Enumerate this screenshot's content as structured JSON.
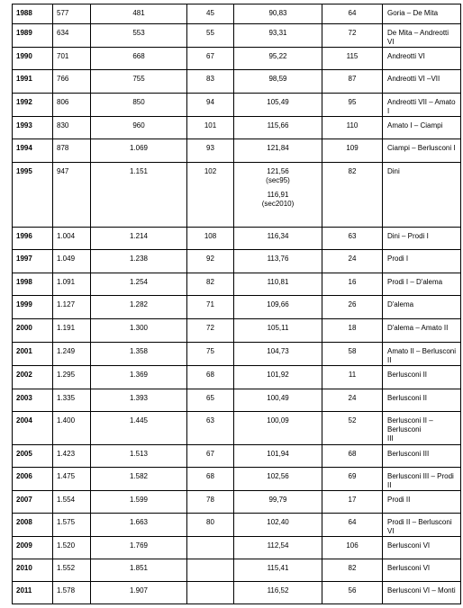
{
  "rows": [
    {
      "year": "1988",
      "a": "577",
      "b": "481",
      "c": "45",
      "d": "90,83",
      "e": "64",
      "gov": "Goria – De Mita"
    },
    {
      "year": "1989",
      "a": "634",
      "b": "553",
      "c": "55",
      "d": "93,31",
      "e": "72",
      "gov": "De Mita – Andreotti VI"
    },
    {
      "year": "1990",
      "a": "701",
      "b": "668",
      "c": "67",
      "d": "95,22",
      "e": "115",
      "gov": "Andreotti VI"
    },
    {
      "year": "1991",
      "a": "766",
      "b": "755",
      "c": "83",
      "d": "98,59",
      "e": "87",
      "gov": "Andreotti VI –VII"
    },
    {
      "year": "1992",
      "a": "806",
      "b": "850",
      "c": "94",
      "d": "105,49",
      "e": "95",
      "gov": "Andreotti VII – Amato I"
    },
    {
      "year": "1993",
      "a": "830",
      "b": "960",
      "c": "101",
      "d": "115,66",
      "e": "110",
      "gov": "Amato I – Ciampi"
    },
    {
      "year": "1994",
      "a": "878",
      "b": "1.069",
      "c": "93",
      "d": "121,84",
      "e": "109",
      "gov": "Ciampi – Berlusconi I"
    },
    {
      "year": "1995",
      "a": "947",
      "b": "1.151",
      "c": "102",
      "d": "121,56",
      "d2": "(sec95)",
      "d3": "116,91",
      "d4": "(sec2010)",
      "e": "82",
      "gov": "Dini"
    },
    {
      "year": "1996",
      "a": "1.004",
      "b": "1.214",
      "c": "108",
      "d": "116,34",
      "e": "63",
      "gov": "Dini – Prodi I"
    },
    {
      "year": "1997",
      "a": "1.049",
      "b": "1.238",
      "c": "92",
      "d": "113,76",
      "e": "24",
      "gov": "Prodi I"
    },
    {
      "year": "1998",
      "a": "1.091",
      "b": "1.254",
      "c": "82",
      "d": "110,81",
      "e": "16",
      "gov": "Prodi I – D'alema"
    },
    {
      "year": "1999",
      "a": "1.127",
      "b": "1.282",
      "c": "71",
      "d": "109,66",
      "e": "26",
      "gov": "D'alema"
    },
    {
      "year": "2000",
      "a": "1.191",
      "b": "1.300",
      "c": "72",
      "d": "105,11",
      "e": "18",
      "gov": "D'alema – Amato II"
    },
    {
      "year": "2001",
      "a": "1.249",
      "b": "1.358",
      "c": "75",
      "d": "104,73",
      "e": "58",
      "gov": "Amato II – Berlusconi II"
    },
    {
      "year": "2002",
      "a": "1.295",
      "b": "1.369",
      "c": "68",
      "d": "101,92",
      "e": "11",
      "gov": "Berlusconi II"
    },
    {
      "year": "2003",
      "a": "1.335",
      "b": "1.393",
      "c": "65",
      "d": "100,49",
      "e": "24",
      "gov": "Berlusconi II"
    },
    {
      "year": "2004",
      "a": "1.400",
      "b": "1.445",
      "c": "63",
      "d": "100,09",
      "e": "52",
      "gov": "Berlusconi  II  –  Berlusconi",
      "gov2": "III"
    },
    {
      "year": "2005",
      "a": "1.423",
      "b": "1.513",
      "c": "67",
      "d": "101,94",
      "e": "68",
      "gov": "Berlusconi III"
    },
    {
      "year": "2006",
      "a": "1.475",
      "b": "1.582",
      "c": "68",
      "d": "102,56",
      "e": "69",
      "gov": "Berlusconi III – Prodi II"
    },
    {
      "year": "2007",
      "a": "1.554",
      "b": "1.599",
      "c": "78",
      "d": "99,79",
      "e": "17",
      "gov": "Prodi II"
    },
    {
      "year": "2008",
      "a": "1.575",
      "b": "1.663",
      "c": "80",
      "d": "102,40",
      "e": "64",
      "gov": "Prodi II – Berlusconi VI"
    },
    {
      "year": "2009",
      "a": "1.520",
      "b": "1.769",
      "c": "",
      "d": "112,54",
      "e": "106",
      "gov": "Berlusconi VI"
    },
    {
      "year": "2010",
      "a": "1.552",
      "b": "1.851",
      "c": "",
      "d": "115,41",
      "e": "82",
      "gov": "Berlusconi VI"
    },
    {
      "year": "2011",
      "a": "1.578",
      "b": "1.907",
      "c": "",
      "d": "116,52",
      "e": "56",
      "gov": "Berlusconi VI – Monti"
    }
  ]
}
